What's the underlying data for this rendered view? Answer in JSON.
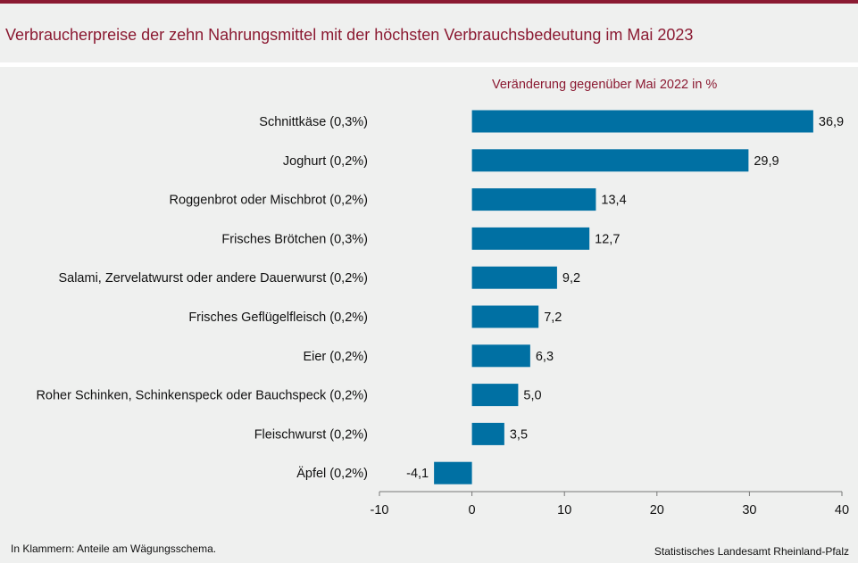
{
  "title": "Verbraucherpreise der zehn Nahrungsmittel mit der höchsten Verbrauchsbedeutung im Mai 2023",
  "footnote": "In Klammern: Anteile am Wägungsschema.",
  "source": "Statistisches Landesamt Rheinland-Pfalz",
  "colors": {
    "accent": "#8b1a32",
    "bar": "#0070a3",
    "background": "#eff0ef"
  },
  "chart_data": {
    "type": "bar",
    "orientation": "horizontal",
    "title": "Verbraucherpreise der zehn Nahrungsmittel mit der höchsten Verbrauchsbedeutung im Mai 2023",
    "subtitle": "Veränderung  gegenüber Mai 2022 in %",
    "categories": [
      "Schnittkäse (0,3%)",
      "Joghurt (0,2%)",
      "Roggenbrot oder Mischbrot (0,2%)",
      "Frisches Brötchen (0,3%)",
      "Salami, Zervelatwurst oder andere Dauerwurst (0,2%)",
      "Frisches Geflügelfleisch (0,2%)",
      "Eier (0,2%)",
      "Roher Schinken, Schinkenspeck oder Bauchspeck (0,2%)",
      "Fleischwurst (0,2%)",
      "Äpfel (0,2%)"
    ],
    "values": [
      36.9,
      29.9,
      13.4,
      12.7,
      9.2,
      7.2,
      6.3,
      5.0,
      3.5,
      -4.1
    ],
    "value_labels": [
      "36,9",
      "29,9",
      "13,4",
      "12,7",
      "9,2",
      "7,2",
      "6,3",
      "5,0",
      "3,5",
      "-4,1"
    ],
    "xlim": [
      -10,
      40
    ],
    "xticks": [
      -10,
      0,
      10,
      20,
      30,
      40
    ],
    "xlabel": "",
    "ylabel": "",
    "grid": false,
    "legend": "none"
  }
}
